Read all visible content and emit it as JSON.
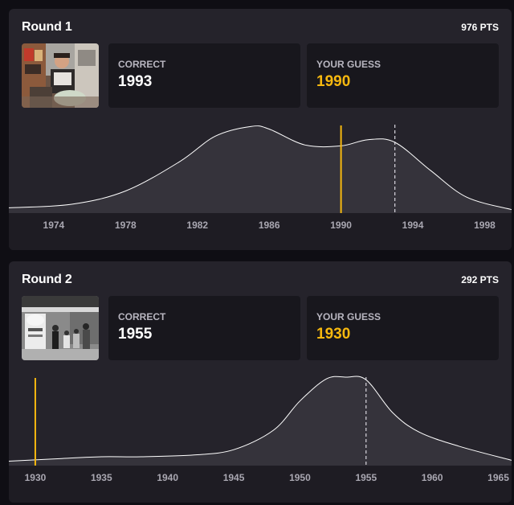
{
  "rounds": [
    {
      "title": "Round 1",
      "points": "976 PTS",
      "photo": "mall-storefront-photo",
      "correct_label": "CORRECT",
      "correct_value": "1993",
      "guess_label": "YOUR GUESS",
      "guess_value": "1990",
      "colors": {
        "guess": "#f6b80f",
        "curve": "#ffffff",
        "fill": "#35333b"
      },
      "chart_data": {
        "type": "area",
        "xlim": [
          1971.5,
          1999.5
        ],
        "ticks": [
          1974,
          1978,
          1982,
          1986,
          1990,
          1994,
          1998
        ],
        "curve": [
          [
            1971.5,
            0.06
          ],
          [
            1975,
            0.1
          ],
          [
            1978,
            0.25
          ],
          [
            1981,
            0.58
          ],
          [
            1983,
            0.87
          ],
          [
            1985,
            0.98
          ],
          [
            1986,
            0.95
          ],
          [
            1988,
            0.77
          ],
          [
            1990,
            0.76
          ],
          [
            1991.5,
            0.83
          ],
          [
            1993,
            0.8
          ],
          [
            1995,
            0.48
          ],
          [
            1997,
            0.18
          ],
          [
            1999.5,
            0.04
          ]
        ],
        "guess": 1990,
        "correct": 1993
      }
    },
    {
      "title": "Round 2",
      "points": "292 PTS",
      "photo": "street-crowd-bw-photo",
      "correct_label": "CORRECT",
      "correct_value": "1955",
      "guess_label": "YOUR GUESS",
      "guess_value": "1930",
      "colors": {
        "guess": "#f6b80f",
        "curve": "#ffffff",
        "fill": "#35333b"
      },
      "chart_data": {
        "type": "area",
        "xlim": [
          1928.0,
          1966.0
        ],
        "ticks": [
          1930,
          1935,
          1940,
          1945,
          1950,
          1955,
          1960,
          1965
        ],
        "curve": [
          [
            1928.0,
            0.05
          ],
          [
            1932,
            0.08
          ],
          [
            1935,
            0.1
          ],
          [
            1938,
            0.1
          ],
          [
            1942,
            0.12
          ],
          [
            1945,
            0.18
          ],
          [
            1948,
            0.4
          ],
          [
            1950,
            0.73
          ],
          [
            1952,
            0.98
          ],
          [
            1953.5,
            1.0
          ],
          [
            1955,
            0.97
          ],
          [
            1957,
            0.6
          ],
          [
            1959,
            0.38
          ],
          [
            1962,
            0.22
          ],
          [
            1966.0,
            0.06
          ]
        ],
        "guess": 1930,
        "correct": 1955
      }
    }
  ]
}
